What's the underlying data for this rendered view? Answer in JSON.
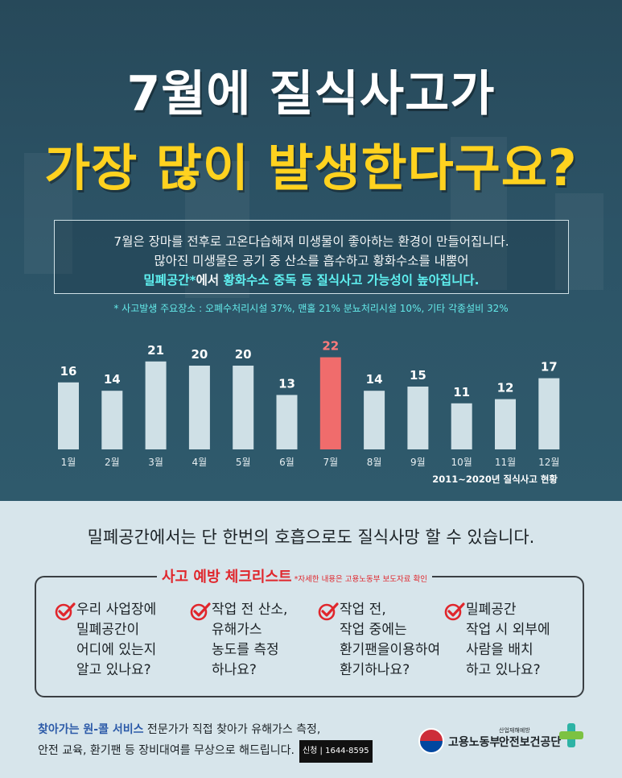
{
  "title": {
    "line1": "7월에 질식사고가",
    "line2": "가장 많이 발생한다구요?"
  },
  "info": {
    "line1": "7월은 장마를 전후로 고온다습해져 미생물이 좋아하는 환경이  만들어집니다.",
    "line2": "많아진  미생물은 공기 중 산소를 흡수하고 황화수소를 내뿜어",
    "line3_highlight": "밀폐공간*",
    "line3_mid": "에서 ",
    "line3_highlight2": "황화수소 중독 등 질식사고 가능성이 높아집니다."
  },
  "note": "*  사고발생 주요장소 : 오폐수처리시설 37%, 맨홀 21% 분뇨처리시설 10%, 기타 각종설비 32%",
  "chart_data": {
    "type": "bar",
    "categories": [
      "1월",
      "2월",
      "3월",
      "4월",
      "5월",
      "6월",
      "7월",
      "8월",
      "9월",
      "10월",
      "11월",
      "12월"
    ],
    "values": [
      16,
      14,
      21,
      20,
      20,
      13,
      22,
      14,
      15,
      11,
      12,
      17
    ],
    "highlight": "7월",
    "caption": "2011~2020년 질식사고  현황",
    "colors": {
      "bar": "#cfe0e6",
      "highlight": "#f06c6c",
      "label": "#ffffff",
      "highlight_label": "#ff7b7b"
    }
  },
  "headline": "밀폐공간에서는 단 한번의 호흡으로도 질식사망 할 수 있습니다.",
  "checklist": {
    "title": "사고 예방 체크리스트",
    "subtitle": "*자세한 내용은 고용노동부 보도자료 확인",
    "items": [
      {
        "icon": "check-icon",
        "lines": [
          "우리 사업장에",
          "밀폐공간이",
          "어디에 있는지",
          "알고 있나요?"
        ]
      },
      {
        "icon": "check-icon",
        "lines": [
          "작업 전 산소,",
          "유해가스",
          "농도를 측정",
          "하나요?"
        ]
      },
      {
        "icon": "check-icon",
        "lines": [
          "작업 전,",
          "작업 중에는",
          "환기팬을이용하여",
          "환기하나요?"
        ]
      },
      {
        "icon": "check-icon",
        "lines": [
          "밀폐공간",
          "작업 시 외부에",
          "사람을 배치",
          "하고 있나요?"
        ]
      }
    ]
  },
  "service": {
    "highlight": "찾아가는 원-콜 서비스",
    "line1": " 전문가가 직접 찾아가 유해가스 측정,",
    "line2": "안전 교육, 환기팬 등 장비대여를 무상으로 해드립니다.",
    "apply": "신청 | 1644-8595"
  },
  "logos": {
    "moel": "고용노동부",
    "kosha_small": "산업재해예방",
    "kosha": "안전보건공단"
  }
}
